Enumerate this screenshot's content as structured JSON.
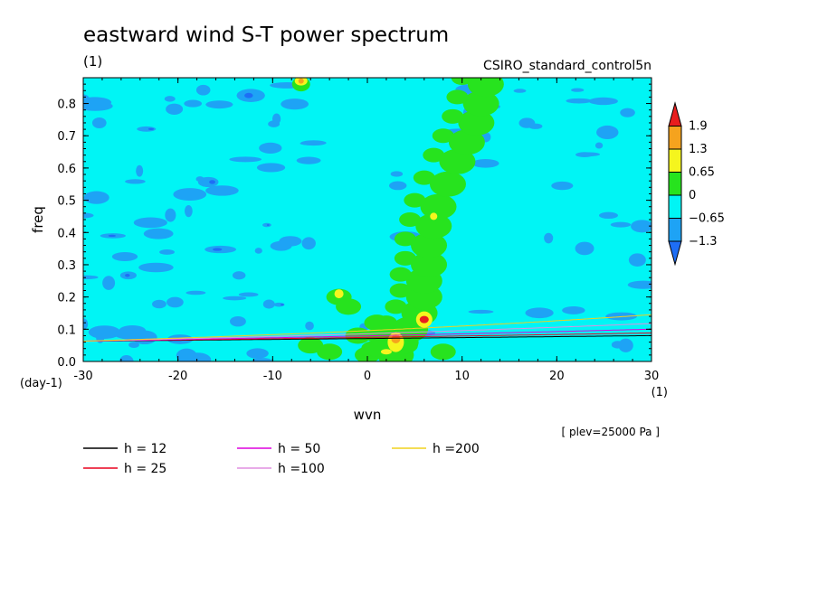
{
  "chart_data": {
    "type": "heatmap",
    "title": "eastward wind S-T power spectrum",
    "title_units": "(1)",
    "run_label": "CSIRO_standard_control5n",
    "level_label": "[ plev=25000 Pa ]",
    "xlabel": "wvn",
    "xlabel_units": "(1)",
    "ylabel": "freq",
    "ylabel_units": "(day-1)",
    "xlim": [
      -30,
      30
    ],
    "ylim": [
      0.0,
      0.88
    ],
    "x_ticks": [
      -30,
      -20,
      -10,
      0,
      10,
      20,
      30
    ],
    "x_tick_labels": [
      "-30",
      "-20",
      "-10",
      "0",
      "10",
      "20",
      "30"
    ],
    "y_ticks": [
      0.0,
      0.1,
      0.2,
      0.3,
      0.4,
      0.5,
      0.6,
      0.7,
      0.8
    ],
    "y_tick_labels": [
      "0.0",
      "0.1",
      "0.2",
      "0.3",
      "0.4",
      "0.5",
      "0.6",
      "0.7",
      "0.8"
    ],
    "colorbar": {
      "levels": [
        1.9,
        1.3,
        0.65,
        0,
        -0.65,
        -1.3
      ],
      "labels": [
        "1.9",
        "1.3",
        "0.65",
        "0",
        "−0.65",
        "−1.3"
      ],
      "colors": [
        "#e81e1e",
        "#f5a31e",
        "#f5f51e",
        "#27e31e",
        "#00f5f5",
        "#1ea3f5",
        "#1e6ef5"
      ]
    },
    "dispersion_curves": [
      {
        "name": "h = 12",
        "h": 12,
        "color": "#000000"
      },
      {
        "name": "h = 25",
        "h": 25,
        "color": "#e8001e"
      },
      {
        "name": "h = 50",
        "h": 50,
        "color": "#dd00dd"
      },
      {
        "name": "h =100",
        "h": 100,
        "color": "#e08fe0"
      },
      {
        "name": "h =200",
        "h": 200,
        "color": "#f0d21e"
      }
    ],
    "background_level": "0 to -0.65",
    "features": [
      {
        "description": "Kelvin wave ridge of positive power following dispersion curves from wvn 0 to 12",
        "level": "0 to 0.65"
      },
      {
        "description": "local maximum",
        "x": 6,
        "y": 0.13,
        "level": ">1.9"
      },
      {
        "description": "local maximum",
        "x": 3,
        "y": 0.07,
        "level": "0.65 to 1.3"
      },
      {
        "description": "local maximum",
        "x": 7,
        "y": 0.45,
        "level": "0.65 to 1.3"
      },
      {
        "description": "local maximum",
        "x": -7,
        "y": 0.87,
        "level": "0.65 to 1.3"
      },
      {
        "description": "negative power region",
        "x_range": [
          -30,
          -5
        ],
        "level": "-0.65 to -1.3"
      }
    ]
  }
}
